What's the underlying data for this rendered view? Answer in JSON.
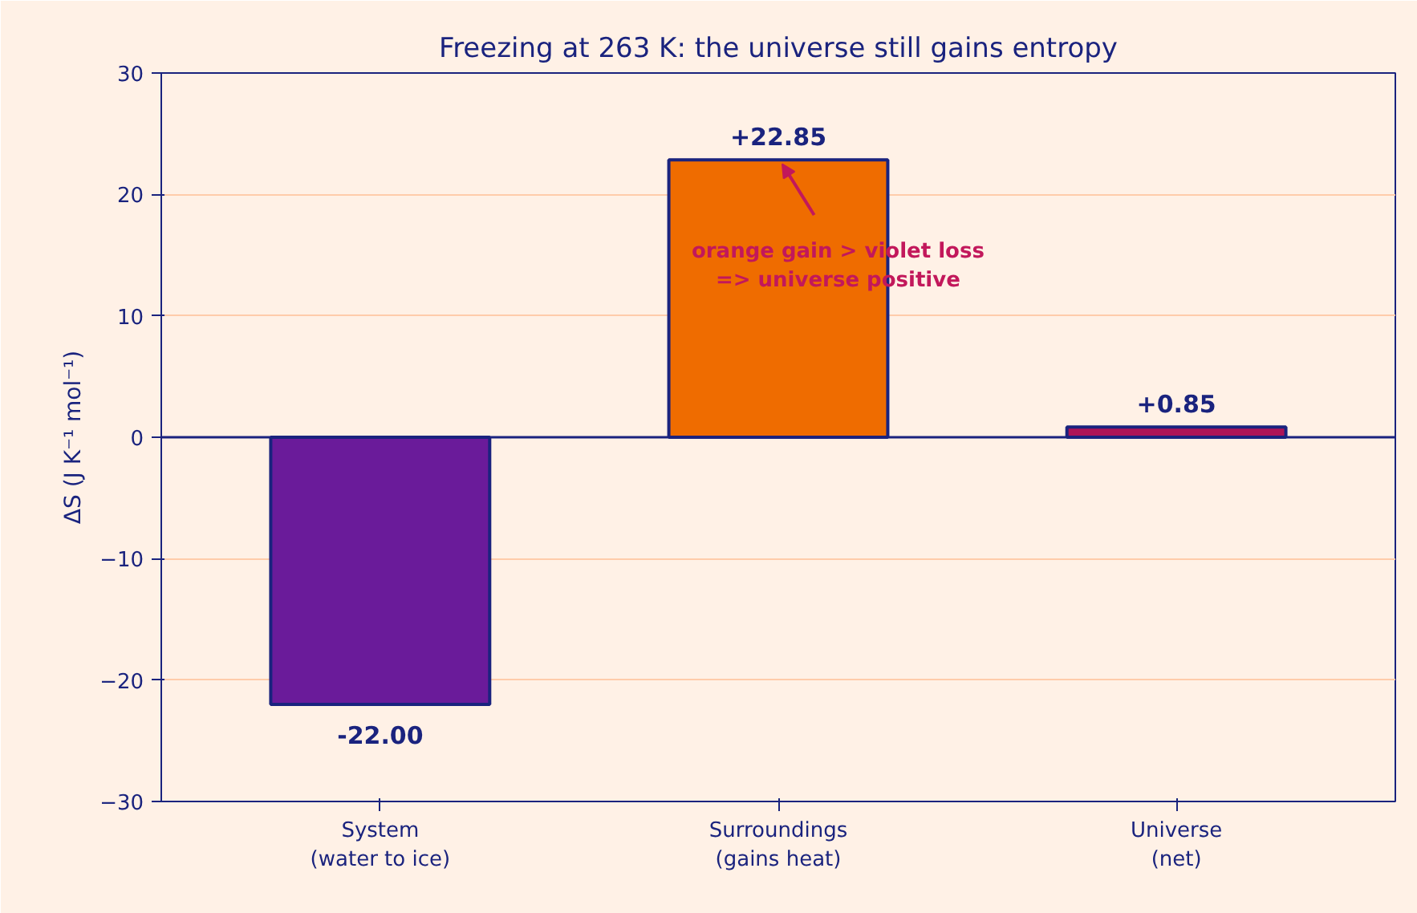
{
  "chart_data": {
    "type": "bar",
    "title": "Freezing at 263 K: the universe still gains entropy",
    "ylabel": "ΔS (J K⁻¹ mol⁻¹)",
    "categories": [
      "System\n(water to ice)",
      "Surroundings\n(gains heat)",
      "Universe\n(net)"
    ],
    "values": [
      -22.0,
      22.85,
      0.85
    ],
    "colors": [
      "#6a1b9a",
      "#ef6c00",
      "#ad1457"
    ],
    "value_labels": [
      "-22.00",
      "+22.85",
      "+0.85"
    ],
    "ylim": [
      -30,
      30
    ],
    "yticks": [
      {
        "value": -30,
        "label": "−30"
      },
      {
        "value": -20,
        "label": "−20"
      },
      {
        "value": -10,
        "label": "−10"
      },
      0,
      10,
      20,
      30
    ],
    "grid": "y",
    "ref_lines": [
      {
        "axis": "y",
        "value": 0,
        "color": "#1a237e"
      }
    ],
    "annotations": [
      {
        "text": "orange gain > violet loss\n=> universe positive",
        "x": "Surroundings\n(gains heat)",
        "y": 22.5
      }
    ]
  }
}
